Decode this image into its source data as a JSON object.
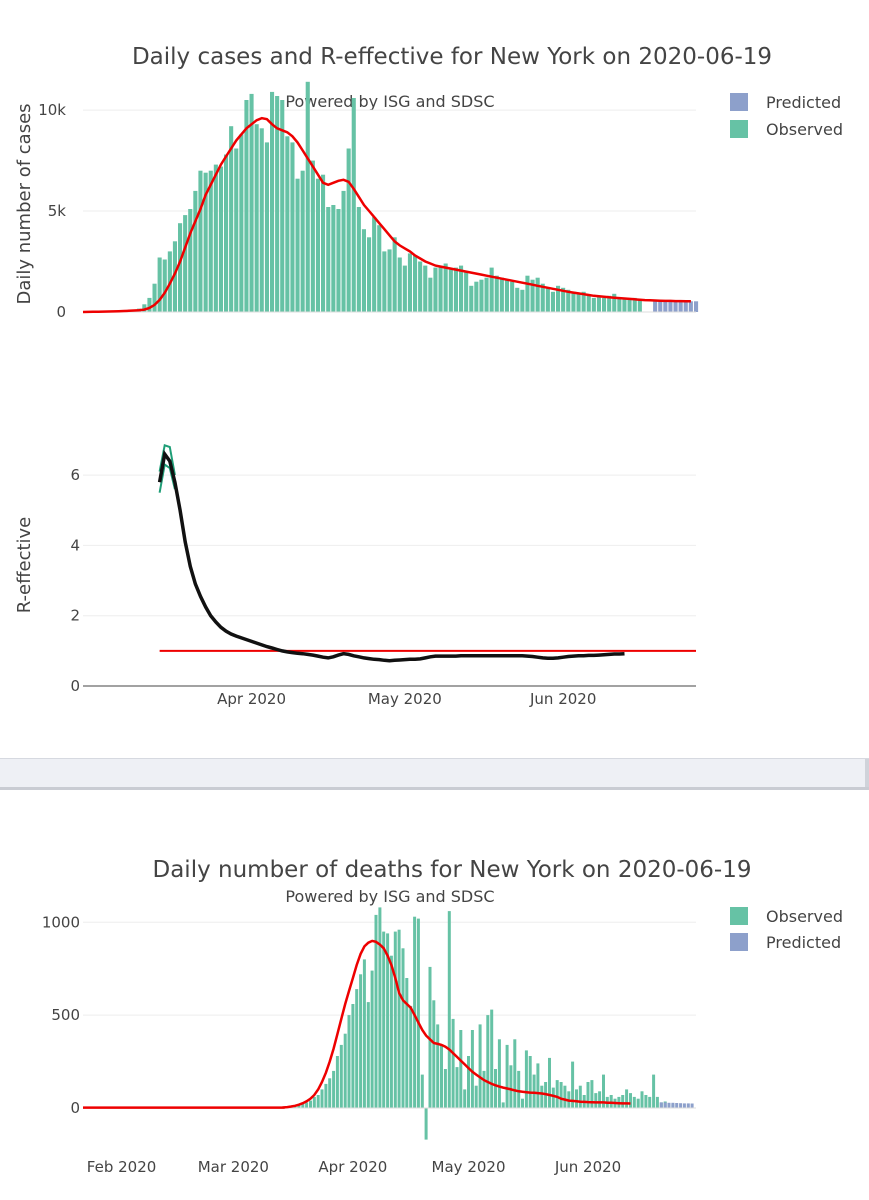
{
  "colors": {
    "observed": "#66c2a5",
    "predicted": "#8da0cb",
    "smooth": "#ee0000",
    "r_line": "#111111",
    "r_band": "#1f9e77",
    "threshold": "#ee0000"
  },
  "chart_data": [
    {
      "type": "bar",
      "title": "Daily cases and R-effective for New York on 2020-06-19",
      "subtitle": "Powered by ISG and SDSC",
      "xlabel": "",
      "ylabel": "Daily number of cases",
      "ylim": [
        0,
        10500
      ],
      "yticks": [
        {
          "value": 0,
          "label": "0"
        },
        {
          "value": 5000,
          "label": "5k"
        },
        {
          "value": 10000,
          "label": "10k"
        }
      ],
      "legend": [
        "Predicted",
        "Observed"
      ],
      "legend_position": "top-right",
      "x_start": "2020-02-28",
      "series": [
        {
          "name": "Observed",
          "values": [
            0,
            10,
            15,
            20,
            25,
            30,
            40,
            45,
            55,
            65,
            95,
            170,
            380,
            700,
            1400,
            2700,
            2600,
            3000,
            3500,
            4400,
            4800,
            5100,
            6000,
            7000,
            6900,
            7000,
            7300,
            7200,
            7800,
            9200,
            8100,
            8800,
            10500,
            10800,
            9300,
            9100,
            8400,
            10900,
            10700,
            10500,
            8700,
            8400,
            6600,
            7000,
            11400,
            7500,
            6600,
            6800,
            5200,
            5300,
            5100,
            6000,
            8100,
            10600,
            5200,
            4100,
            3700,
            4700,
            4300,
            3000,
            3100,
            3700,
            2700,
            2300,
            2900,
            2800,
            2500,
            2300,
            1700,
            2200,
            2300,
            2400,
            2100,
            2200,
            2300,
            2000,
            1300,
            1500,
            1600,
            1700,
            2200,
            1800,
            1700,
            1600,
            1500,
            1200,
            1100,
            1800,
            1600,
            1700,
            1400,
            1200,
            1000,
            1300,
            1200,
            1100,
            1000,
            900,
            1000,
            800,
            700,
            800,
            700,
            800,
            900,
            700,
            700,
            650,
            700,
            600
          ]
        },
        {
          "name": "Predicted",
          "start": "2020-06-19",
          "values": [
            580,
            570,
            560,
            550,
            550,
            540,
            540,
            530,
            530
          ]
        },
        {
          "name": "Smoothed",
          "values": [
            0,
            5,
            10,
            15,
            20,
            25,
            30,
            40,
            50,
            60,
            75,
            90,
            120,
            200,
            350,
            600,
            950,
            1400,
            1900,
            2500,
            3200,
            3900,
            4500,
            5100,
            5800,
            6300,
            6800,
            7300,
            7700,
            8100,
            8500,
            8800,
            9100,
            9300,
            9500,
            9600,
            9550,
            9300,
            9100,
            9000,
            8900,
            8700,
            8400,
            8000,
            7600,
            7200,
            6800,
            6400,
            6300,
            6400,
            6500,
            6550,
            6450,
            6100,
            5700,
            5300,
            5000,
            4700,
            4400,
            4100,
            3800,
            3500,
            3300,
            3150,
            3000,
            2800,
            2650,
            2500,
            2400,
            2300,
            2250,
            2200,
            2150,
            2100,
            2050,
            2000,
            1950,
            1900,
            1850,
            1800,
            1750,
            1700,
            1650,
            1600,
            1550,
            1500,
            1450,
            1400,
            1350,
            1300,
            1250,
            1200,
            1150,
            1100,
            1050,
            1000,
            960,
            920,
            880,
            840,
            800,
            780,
            760,
            730,
            710,
            690,
            670,
            650,
            630,
            610,
            590,
            580,
            570,
            560,
            550,
            550,
            540,
            540,
            530,
            530
          ]
        }
      ]
    },
    {
      "type": "line",
      "title": "",
      "xlabel": "",
      "ylabel": "R-effective",
      "ylim": [
        0,
        7
      ],
      "yticks": [
        {
          "value": 0,
          "label": "0"
        },
        {
          "value": 2,
          "label": "2"
        },
        {
          "value": 4,
          "label": "4"
        },
        {
          "value": 6,
          "label": "6"
        }
      ],
      "xticks": [
        {
          "date": "2020-04-01",
          "label": "Apr 2020"
        },
        {
          "date": "2020-05-01",
          "label": "May 2020"
        },
        {
          "date": "2020-06-01",
          "label": "Jun 2020"
        }
      ],
      "threshold": 1,
      "series": [
        {
          "name": "R-effective",
          "start": "2020-03-14",
          "values": [
            5.8,
            6.6,
            6.4,
            5.8,
            5.0,
            4.1,
            3.4,
            2.9,
            2.55,
            2.25,
            2.0,
            1.82,
            1.67,
            1.56,
            1.48,
            1.42,
            1.37,
            1.32,
            1.27,
            1.22,
            1.17,
            1.12,
            1.08,
            1.04,
            1.0,
            0.97,
            0.95,
            0.93,
            0.92,
            0.9,
            0.88,
            0.85,
            0.82,
            0.8,
            0.83,
            0.88,
            0.92,
            0.9,
            0.86,
            0.83,
            0.8,
            0.78,
            0.76,
            0.75,
            0.73,
            0.72,
            0.73,
            0.74,
            0.75,
            0.76,
            0.76,
            0.77,
            0.8,
            0.83,
            0.85,
            0.85,
            0.85,
            0.85,
            0.85,
            0.86,
            0.86,
            0.86,
            0.86,
            0.86,
            0.86,
            0.86,
            0.86,
            0.86,
            0.86,
            0.86,
            0.86,
            0.86,
            0.85,
            0.84,
            0.82,
            0.8,
            0.79,
            0.79,
            0.8,
            0.82,
            0.84,
            0.85,
            0.86,
            0.86,
            0.87,
            0.87,
            0.88,
            0.89,
            0.9,
            0.91,
            0.91,
            0.92
          ]
        },
        {
          "name": "R-effective lower",
          "start": "2020-03-14",
          "values": [
            5.5,
            6.3,
            6.2,
            5.6
          ]
        },
        {
          "name": "R-effective upper",
          "start": "2020-03-14",
          "values": [
            6.1,
            6.85,
            6.8,
            6.0
          ]
        }
      ]
    },
    {
      "type": "bar",
      "title": "Daily number of deaths for New York on 2020-06-19",
      "subtitle": "Powered by ISG and SDSC",
      "xlabel": "",
      "ylabel": "",
      "ylim": [
        -175,
        1150
      ],
      "yticks": [
        {
          "value": 0,
          "label": "0"
        },
        {
          "value": 500,
          "label": "500"
        },
        {
          "value": 1000,
          "label": "1000"
        }
      ],
      "xticks": [
        {
          "date": "2020-02-01",
          "label": "Feb 2020"
        },
        {
          "date": "2020-03-01",
          "label": "Mar 2020"
        },
        {
          "date": "2020-04-01",
          "label": "Apr 2020"
        },
        {
          "date": "2020-05-01",
          "label": "May 2020"
        },
        {
          "date": "2020-06-01",
          "label": "Jun 2020"
        }
      ],
      "legend": [
        "Observed",
        "Predicted"
      ],
      "legend_position": "top-right",
      "x_start": "2020-03-14",
      "series": [
        {
          "name": "Observed",
          "values": [
            2,
            3,
            5,
            8,
            15,
            25,
            30,
            40,
            60,
            70,
            100,
            130,
            160,
            200,
            280,
            340,
            400,
            500,
            560,
            640,
            720,
            800,
            570,
            740,
            1040,
            1080,
            950,
            940,
            820,
            950,
            960,
            860,
            700,
            550,
            1030,
            1020,
            180,
            -170,
            760,
            580,
            450,
            340,
            210,
            1060,
            480,
            220,
            420,
            100,
            280,
            420,
            120,
            450,
            200,
            500,
            530,
            210,
            370,
            30,
            340,
            230,
            370,
            200,
            50,
            310,
            280,
            180,
            240,
            120,
            140,
            270,
            110,
            150,
            140,
            120,
            90,
            250,
            100,
            120,
            70,
            140,
            150,
            80,
            90,
            180,
            60,
            70,
            50,
            60,
            70,
            100,
            80,
            60,
            50,
            90,
            70,
            60,
            180,
            60,
            30,
            35,
            25,
            20
          ]
        },
        {
          "name": "Predicted",
          "start": "2020-06-20",
          "values": [
            30,
            30,
            28,
            28,
            27,
            26,
            25,
            25,
            24
          ]
        },
        {
          "name": "Smoothed",
          "values": [
            3,
            5,
            8,
            12,
            18,
            26,
            36,
            50,
            70,
            100,
            140,
            190,
            250,
            320,
            400,
            480,
            560,
            630,
            700,
            770,
            830,
            870,
            890,
            900,
            895,
            880,
            860,
            820,
            770,
            700,
            620,
            580,
            560,
            540,
            500,
            460,
            420,
            390,
            370,
            350,
            345,
            340,
            330,
            315,
            295,
            275,
            255,
            235,
            215,
            195,
            180,
            165,
            150,
            140,
            130,
            122,
            115,
            110,
            105,
            100,
            95,
            90,
            87,
            85,
            83,
            82,
            80,
            78,
            75,
            70,
            65,
            60,
            50,
            45,
            40,
            38,
            36,
            34,
            33,
            32,
            31,
            30,
            30,
            30,
            28,
            28,
            27,
            26,
            25,
            25,
            24
          ]
        }
      ]
    }
  ]
}
